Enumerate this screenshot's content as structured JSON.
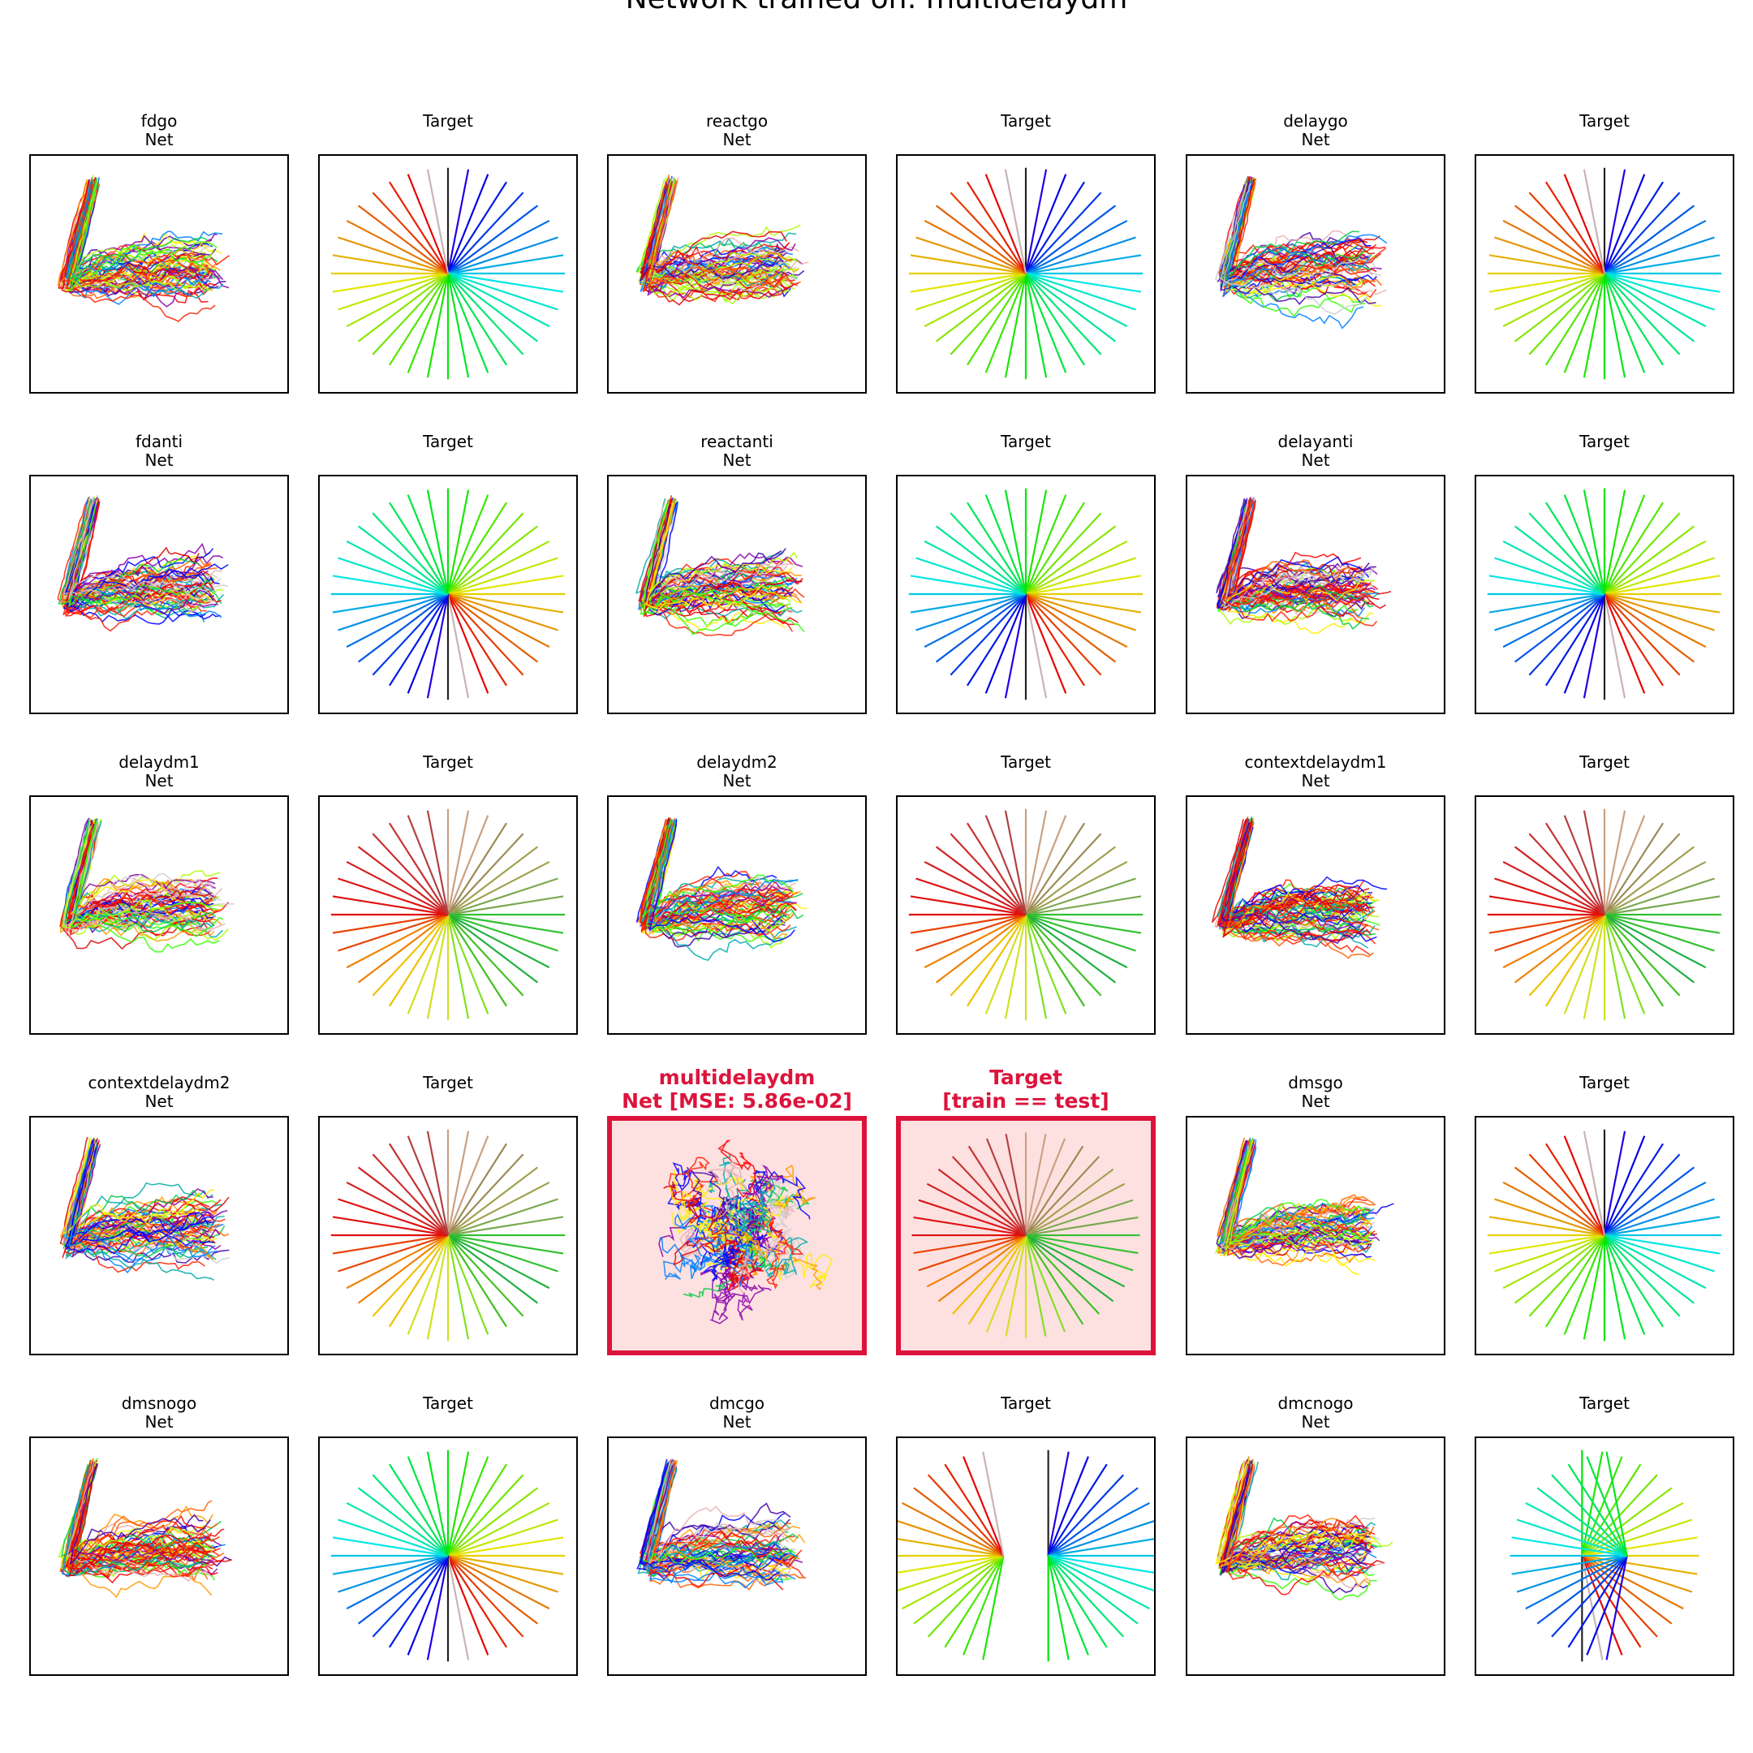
{
  "title": "Network trained on: multidelaydm",
  "colors": {
    "highlight": "#dc143c",
    "highlight_fill": "#fde0e0",
    "frame": "#000000"
  },
  "chart_data": {
    "type": "grid of trajectory and target-direction panels",
    "n_directions": 36,
    "panels": [
      {
        "task": "fdgo",
        "net_label": "Net",
        "target_label": "Target",
        "target_pattern": "go",
        "traj": "L"
      },
      {
        "task": "reactgo",
        "net_label": "Net",
        "target_label": "Target",
        "target_pattern": "go",
        "traj": "L"
      },
      {
        "task": "delaygo",
        "net_label": "Net",
        "target_label": "Target",
        "target_pattern": "go",
        "traj": "L"
      },
      {
        "task": "fdanti",
        "net_label": "Net",
        "target_label": "Target",
        "target_pattern": "anti",
        "traj": "L"
      },
      {
        "task": "reactanti",
        "net_label": "Net",
        "target_label": "Target",
        "target_pattern": "anti",
        "traj": "L"
      },
      {
        "task": "delayanti",
        "net_label": "Net",
        "target_label": "Target",
        "target_pattern": "anti",
        "traj": "L"
      },
      {
        "task": "delaydm1",
        "net_label": "Net",
        "target_label": "Target",
        "target_pattern": "dm",
        "traj": "L"
      },
      {
        "task": "delaydm2",
        "net_label": "Net",
        "target_label": "Target",
        "target_pattern": "dm",
        "traj": "L"
      },
      {
        "task": "contextdelaydm1",
        "net_label": "Net",
        "target_label": "Target",
        "target_pattern": "dm",
        "traj": "L"
      },
      {
        "task": "contextdelaydm2",
        "net_label": "Net",
        "target_label": "Target",
        "target_pattern": "dm",
        "traj": "L"
      },
      {
        "task": "multidelaydm",
        "net_label": "Net [MSE: 5.86e-02]",
        "target_label": "Target",
        "target_sub": "[train == test]",
        "target_pattern": "dm",
        "traj": "blob",
        "highlight": true
      },
      {
        "task": "dmsgo",
        "net_label": "Net",
        "target_label": "Target",
        "target_pattern": "go",
        "traj": "L"
      },
      {
        "task": "dmsnogo",
        "net_label": "Net",
        "target_label": "Target",
        "target_pattern": "anti",
        "traj": "L"
      },
      {
        "task": "dmcgo",
        "net_label": "Net",
        "target_label": "Target",
        "target_pattern": "split",
        "traj": "L"
      },
      {
        "task": "dmcnogo",
        "net_label": "Net",
        "target_label": "Target",
        "target_pattern": "split_anti",
        "traj": "L"
      }
    ]
  }
}
